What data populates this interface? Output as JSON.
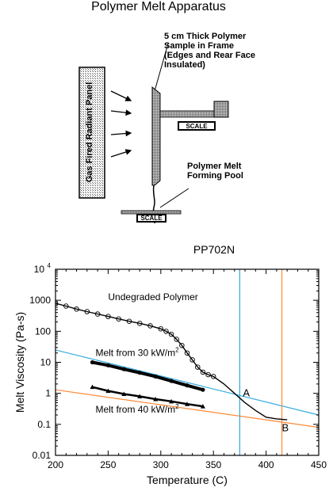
{
  "apparatus": {
    "title": "Polymer Melt Apparatus",
    "sample_note": "5 cm Thick Polymer\nSample in Frame\n(Edges and Rear Face\nInsulated)",
    "panel_label": "Gas Fired Radiant Panel",
    "scale_upper": "SCALE",
    "pool_note": "Polymer Melt\nForming Pool",
    "scale_lower": "SCALE"
  },
  "chart_data": {
    "type": "scatter",
    "title": "PP702N",
    "xlabel": "Temperature (C)",
    "ylabel": "Melt Viscosity (Pa-s)",
    "xlim": [
      200,
      450
    ],
    "ylim": [
      0.01,
      10000
    ],
    "y_scale": "log",
    "x_ticks": [
      "200",
      "250",
      "300",
      "350",
      "400",
      "450"
    ],
    "y_ticks": [
      "0.01",
      "0.1",
      "1",
      "10",
      "100",
      "1000"
    ],
    "y_tick_top": {
      "base": "10",
      "exp": "4"
    },
    "series": [
      {
        "name": "Undegraded Polymer",
        "marker": "open-circle",
        "x": [
          200,
          210,
          220,
          230,
          240,
          250,
          260,
          270,
          280,
          290,
          300,
          305,
          310,
          315,
          320,
          325,
          330,
          335,
          340,
          345,
          350,
          360,
          370,
          380,
          390,
          400,
          410,
          420
        ],
        "y": [
          800,
          650,
          520,
          430,
          360,
          300,
          250,
          210,
          180,
          150,
          120,
          100,
          80,
          55,
          35,
          20,
          12,
          7,
          4.8,
          4,
          3.5,
          2,
          1,
          0.5,
          0.28,
          0.17,
          0.15,
          0.14
        ]
      },
      {
        "name": "Melt from 30 kW/m2",
        "marker": "filled-circle",
        "x": [
          235,
          250,
          265,
          280,
          295,
          310,
          325,
          340
        ],
        "y": [
          10,
          8,
          6,
          4.6,
          3.5,
          2.5,
          1.8,
          1.3
        ]
      },
      {
        "name": "Melt from 40 kW/m2",
        "marker": "filled-triangle",
        "x": [
          235,
          250,
          265,
          280,
          295,
          310,
          325,
          340
        ],
        "y": [
          1.6,
          1.2,
          0.95,
          0.8,
          0.65,
          0.55,
          0.45,
          0.38
        ]
      }
    ],
    "reference_lines": [
      {
        "kind": "trend",
        "color": "#33aadd",
        "x": [
          200,
          450
        ],
        "y": [
          25,
          0.2
        ]
      },
      {
        "kind": "trend",
        "color": "#ff8833",
        "x": [
          200,
          450
        ],
        "y": [
          1.3,
          0.08
        ]
      },
      {
        "kind": "vertical",
        "color": "#33aadd",
        "x": 375
      },
      {
        "kind": "vertical",
        "color": "#ff8833",
        "x": 415
      }
    ],
    "annotations": [
      {
        "text": "A",
        "x": 378,
        "y": 0.8
      },
      {
        "text": "B",
        "x": 415,
        "y": 0.06
      }
    ],
    "curve_labels": [
      {
        "text": "Undegraded Polymer",
        "x": 250,
        "y": 1000
      },
      {
        "text": "Melt from 30 kW/m",
        "sup": "2",
        "x": 238,
        "y": 16
      },
      {
        "text": "Melt from 40 kW/m",
        "sup": "2",
        "x": 238,
        "y": 0.24
      }
    ],
    "colors": {
      "cyan": "#33aadd",
      "orange": "#ff8833",
      "ink": "#000000"
    }
  }
}
